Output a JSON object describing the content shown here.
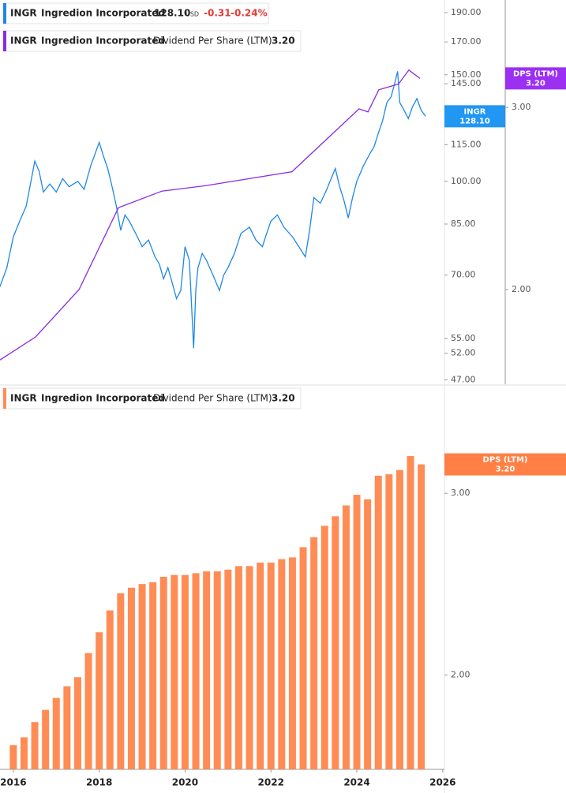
{
  "chart_data": [
    {
      "type": "line",
      "log_scale": true,
      "xlim": [
        2015.69,
        2026.04
      ],
      "ylim": [
        46.2,
        199.4
      ],
      "yticks": [
        {
          "value": 190,
          "label": "190.00"
        },
        {
          "value": 170,
          "label": "170.00"
        },
        {
          "value": 150,
          "label": "150.00"
        },
        {
          "value": 145,
          "label": "145.00"
        },
        {
          "value": 115,
          "label": "115.00"
        },
        {
          "value": 100,
          "label": "100.00"
        },
        {
          "value": 85,
          "label": "85.00"
        },
        {
          "value": 70,
          "label": "70.00"
        },
        {
          "value": 55,
          "label": "55.00"
        },
        {
          "value": 52,
          "label": "52.00"
        },
        {
          "value": 47,
          "label": "47.00"
        }
      ],
      "y2lim": [
        1.62,
        3.81
      ],
      "y2ticks": [
        {
          "value": 3,
          "label": "3.00"
        },
        {
          "value": 2,
          "label": "2.00"
        }
      ],
      "series": [
        {
          "symbol": "INGR",
          "name": "Ingredion Incorporated",
          "color": "#1e88e5",
          "tag_color": "#2196f3",
          "tag": "INGR",
          "last": "128.10",
          "currency": "USD",
          "change": "-0.31",
          "change_pct": "-0.24%",
          "x": [
            2015.69,
            2015.85,
            2016.0,
            2016.15,
            2016.3,
            2016.5,
            2016.6,
            2016.7,
            2016.85,
            2017.0,
            2017.15,
            2017.3,
            2017.5,
            2017.65,
            2017.8,
            2018.0,
            2018.1,
            2018.2,
            2018.3,
            2018.4,
            2018.5,
            2018.6,
            2018.7,
            2018.85,
            2019.0,
            2019.15,
            2019.3,
            2019.4,
            2019.5,
            2019.6,
            2019.7,
            2019.8,
            2019.9,
            2020.0,
            2020.1,
            2020.2,
            2020.25,
            2020.3,
            2020.4,
            2020.5,
            2020.65,
            2020.8,
            2020.9,
            2021.0,
            2021.15,
            2021.3,
            2021.5,
            2021.65,
            2021.8,
            2021.9,
            2022.0,
            2022.15,
            2022.3,
            2022.5,
            2022.65,
            2022.8,
            2022.9,
            2023.0,
            2023.15,
            2023.3,
            2023.4,
            2023.5,
            2023.6,
            2023.7,
            2023.8,
            2023.9,
            2024.0,
            2024.15,
            2024.3,
            2024.4,
            2024.5,
            2024.6,
            2024.7,
            2024.8,
            2024.9,
            2024.95,
            2025.0,
            2025.1,
            2025.2,
            2025.3,
            2025.4,
            2025.5,
            2025.6
          ],
          "values": [
            67,
            72,
            81,
            86,
            91,
            108,
            104,
            96,
            99,
            96,
            101,
            98,
            100,
            97,
            106,
            116,
            110,
            105,
            98,
            91,
            83,
            88,
            86,
            82,
            78,
            80,
            75,
            73,
            69,
            72,
            68,
            64,
            66,
            78,
            74,
            53,
            66,
            72,
            76,
            74,
            70,
            66,
            70,
            72,
            76,
            82,
            84,
            80,
            78,
            82,
            86,
            88,
            84,
            81,
            78,
            75,
            83,
            94,
            92,
            97,
            101,
            105,
            98,
            93,
            87,
            94,
            100,
            106,
            111,
            114,
            120,
            126,
            135,
            138,
            147,
            152,
            135,
            131,
            127,
            133,
            137,
            131,
            128.1
          ]
        },
        {
          "symbol": "INGR",
          "name": "Ingredion Incorporated",
          "metric": "Dividend Per Share (LTM)",
          "color": "#8a2be2",
          "tag_color": "#9b30f2",
          "tag": "DPS (LTM)",
          "axis": "y2",
          "last": "3.20",
          "x": [
            2015.69,
            2016.52,
            2017.53,
            2018.45,
            2019.46,
            2020.47,
            2022.49,
            2024.05,
            2024.26,
            2024.51,
            2024.97,
            2025.21,
            2025.47
          ],
          "values": [
            1.71,
            1.8,
            2.0,
            2.4,
            2.49,
            2.52,
            2.6,
            2.99,
            2.97,
            3.12,
            3.16,
            3.26,
            3.2
          ]
        }
      ]
    },
    {
      "type": "bar",
      "log_scale": true,
      "xlim": [
        2015.69,
        2026.04
      ],
      "xticks": [
        2016,
        2018,
        2020,
        2022,
        2024,
        2026
      ],
      "ylim": [
        1.62,
        3.82
      ],
      "yticks": [
        {
          "value": 3,
          "label": "3.00"
        },
        {
          "value": 2,
          "label": "2.00"
        }
      ],
      "series": [
        {
          "symbol": "INGR",
          "name": "Ingredion Incorporated",
          "metric": "Dividend Per Share (LTM)",
          "color": "#ff8c55",
          "tag_color": "#ff7f45",
          "tag": "DPS (LTM)",
          "last": "3.20",
          "x": [
            2016,
            2016.25,
            2016.5,
            2016.75,
            2017,
            2017.25,
            2017.5,
            2017.75,
            2018,
            2018.25,
            2018.5,
            2018.75,
            2019,
            2019.25,
            2019.5,
            2019.75,
            2020,
            2020.25,
            2020.5,
            2020.75,
            2021,
            2021.25,
            2021.5,
            2021.75,
            2022,
            2022.25,
            2022.5,
            2022.75,
            2023,
            2023.25,
            2023.5,
            2023.75,
            2024,
            2024.25,
            2024.5,
            2024.75,
            2025,
            2025.25,
            2025.5
          ],
          "values": [
            1.71,
            1.74,
            1.8,
            1.85,
            1.9,
            1.95,
            1.99,
            2.1,
            2.2,
            2.31,
            2.4,
            2.43,
            2.45,
            2.46,
            2.49,
            2.5,
            2.5,
            2.51,
            2.52,
            2.52,
            2.53,
            2.55,
            2.55,
            2.57,
            2.57,
            2.59,
            2.6,
            2.66,
            2.72,
            2.79,
            2.85,
            2.92,
            2.99,
            2.96,
            3.12,
            3.13,
            3.16,
            3.26,
            3.2
          ]
        }
      ]
    }
  ]
}
